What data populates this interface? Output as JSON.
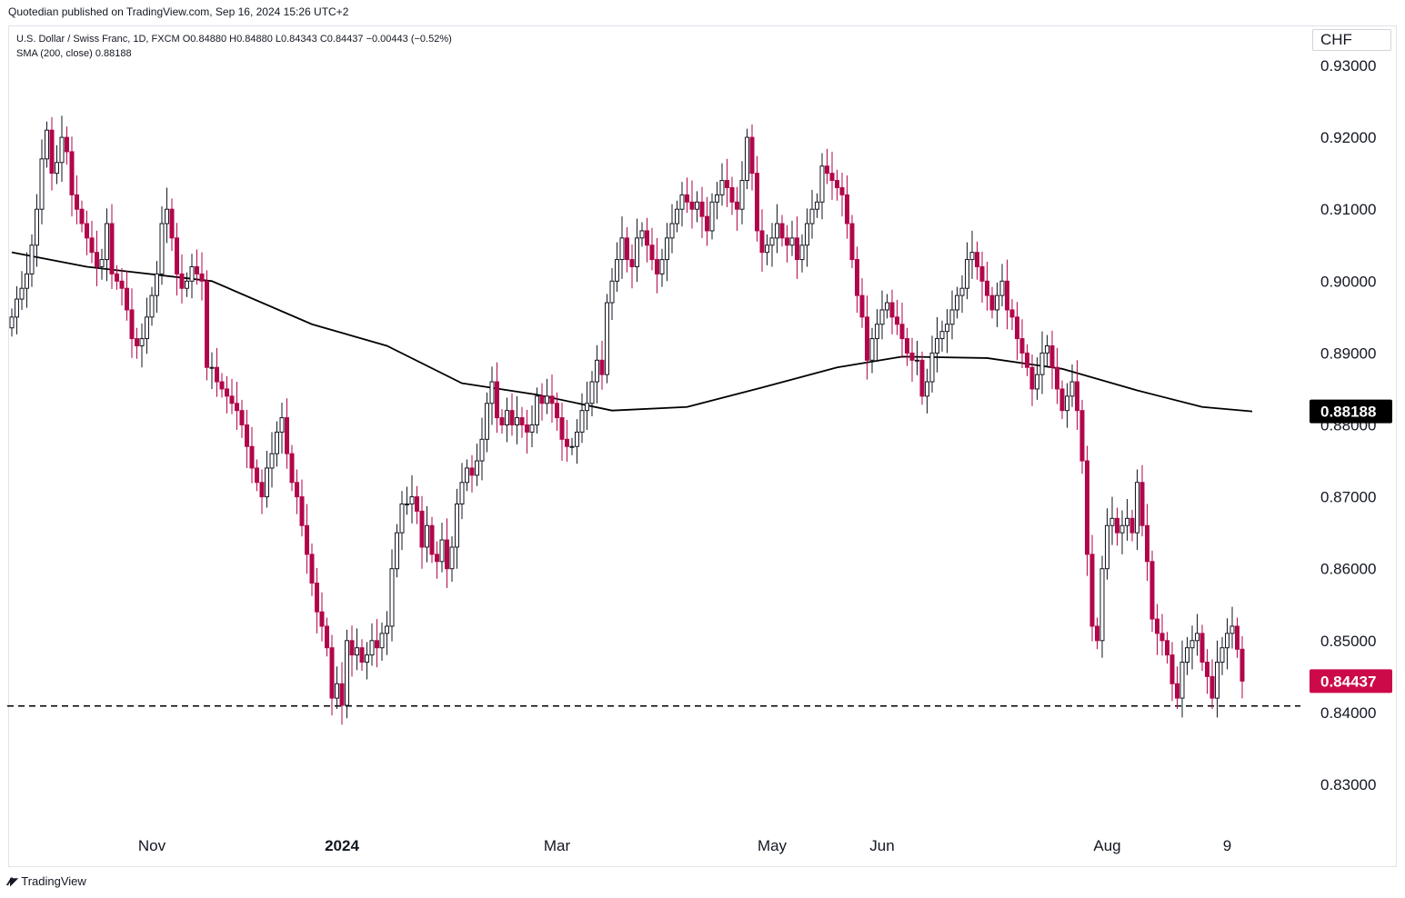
{
  "header": {
    "publish_text": "Quotedian published on TradingView.com, Sep 16, 2024 15:26 UTC+2"
  },
  "legend": {
    "line1": "U.S. Dollar / Swiss Franc, 1D, FXCM  O0.84880  H0.84880  L0.84343  C0.84437  −0.00443 (−0.52%)",
    "line2": "SMA (200, close)  0.88188"
  },
  "currency_label": "CHF",
  "footer": {
    "logo_icon": "tradingview-logo-icon",
    "brand": "TradingView"
  },
  "colors": {
    "up": "#131722",
    "down": "#b2064b",
    "sma": "#000000",
    "price_tag": "#cc0a4a",
    "sma_tag": "#000000"
  },
  "chart_data": {
    "type": "candlestick",
    "symbol": "U.S. Dollar / Swiss Franc",
    "interval": "1D",
    "ylim": [
      0.822,
      0.9365
    ],
    "y_ticks": [
      "0.93000",
      "0.92000",
      "0.91000",
      "0.90000",
      "0.89000",
      "0.88000",
      "0.87000",
      "0.86000",
      "0.85000",
      "0.84000",
      "0.83000"
    ],
    "x_ticks": [
      {
        "label": "Nov",
        "bold": false,
        "index": 28
      },
      {
        "label": "2024",
        "bold": true,
        "index": 66
      },
      {
        "label": "Mar",
        "bold": false,
        "index": 109
      },
      {
        "label": "May",
        "bold": false,
        "index": 152
      },
      {
        "label": "Jun",
        "bold": false,
        "index": 174
      },
      {
        "label": "Aug",
        "bold": false,
        "index": 219
      },
      {
        "label": "9",
        "bold": false,
        "index": 243
      }
    ],
    "support_level": 0.8409,
    "last_price": {
      "value": 0.84437,
      "label": "0.84437"
    },
    "sma_last": {
      "value": 0.88188,
      "label": "0.88188"
    },
    "closes": [
      0.895,
      0.8975,
      0.899,
      0.901,
      0.905,
      0.91,
      0.917,
      0.921,
      0.915,
      0.9165,
      0.92,
      0.918,
      0.912,
      0.91,
      0.908,
      0.906,
      0.904,
      0.902,
      0.903,
      0.908,
      0.901,
      0.9,
      0.899,
      0.896,
      0.892,
      0.891,
      0.892,
      0.895,
      0.898,
      0.901,
      0.908,
      0.91,
      0.906,
      0.901,
      0.899,
      0.9,
      0.902,
      0.901,
      0.9,
      0.888,
      0.888,
      0.886,
      0.885,
      0.884,
      0.883,
      0.882,
      0.88,
      0.877,
      0.874,
      0.872,
      0.87,
      0.874,
      0.876,
      0.879,
      0.881,
      0.876,
      0.872,
      0.87,
      0.866,
      0.862,
      0.858,
      0.854,
      0.852,
      0.849,
      0.842,
      0.844,
      0.841,
      0.85,
      0.848,
      0.849,
      0.847,
      0.848,
      0.85,
      0.849,
      0.851,
      0.852,
      0.86,
      0.865,
      0.869,
      0.869,
      0.87,
      0.868,
      0.863,
      0.866,
      0.862,
      0.861,
      0.864,
      0.86,
      0.863,
      0.869,
      0.872,
      0.874,
      0.873,
      0.875,
      0.878,
      0.883,
      0.886,
      0.881,
      0.88,
      0.882,
      0.88,
      0.881,
      0.88,
      0.879,
      0.88,
      0.884,
      0.883,
      0.884,
      0.883,
      0.881,
      0.878,
      0.877,
      0.877,
      0.879,
      0.882,
      0.883,
      0.886,
      0.889,
      0.887,
      0.897,
      0.9,
      0.903,
      0.906,
      0.903,
      0.902,
      0.906,
      0.907,
      0.905,
      0.903,
      0.901,
      0.903,
      0.906,
      0.908,
      0.91,
      0.912,
      0.911,
      0.91,
      0.911,
      0.909,
      0.907,
      0.911,
      0.912,
      0.914,
      0.913,
      0.911,
      0.91,
      0.914,
      0.92,
      0.915,
      0.907,
      0.904,
      0.905,
      0.906,
      0.908,
      0.906,
      0.905,
      0.906,
      0.903,
      0.905,
      0.908,
      0.91,
      0.911,
      0.916,
      0.915,
      0.914,
      0.913,
      0.912,
      0.908,
      0.903,
      0.898,
      0.895,
      0.889,
      0.892,
      0.894,
      0.896,
      0.897,
      0.895,
      0.894,
      0.892,
      0.89,
      0.889,
      0.889,
      0.884,
      0.886,
      0.89,
      0.892,
      0.893,
      0.894,
      0.896,
      0.898,
      0.899,
      0.903,
      0.904,
      0.902,
      0.9,
      0.898,
      0.896,
      0.898,
      0.9,
      0.896,
      0.895,
      0.892,
      0.89,
      0.888,
      0.885,
      0.887,
      0.89,
      0.891,
      0.888,
      0.885,
      0.882,
      0.884,
      0.886,
      0.882,
      0.875,
      0.862,
      0.852,
      0.85,
      0.86,
      0.866,
      0.867,
      0.865,
      0.866,
      0.867,
      0.865,
      0.872,
      0.866,
      0.861,
      0.853,
      0.851,
      0.85,
      0.848,
      0.844,
      0.842,
      0.847,
      0.849,
      0.85,
      0.851,
      0.847,
      0.845,
      0.842,
      0.847,
      0.849,
      0.851,
      0.852,
      0.8488,
      0.84437
    ],
    "sma": [
      [
        0,
        0.904
      ],
      [
        15,
        0.902
      ],
      [
        40,
        0.9
      ],
      [
        60,
        0.894
      ],
      [
        75,
        0.891
      ],
      [
        90,
        0.8858
      ],
      [
        105,
        0.8842
      ],
      [
        120,
        0.882
      ],
      [
        135,
        0.8825
      ],
      [
        150,
        0.8852
      ],
      [
        165,
        0.888
      ],
      [
        178,
        0.8895
      ],
      [
        195,
        0.8893
      ],
      [
        210,
        0.8878
      ],
      [
        225,
        0.8848
      ],
      [
        238,
        0.8825
      ],
      [
        248,
        0.88188
      ]
    ]
  }
}
